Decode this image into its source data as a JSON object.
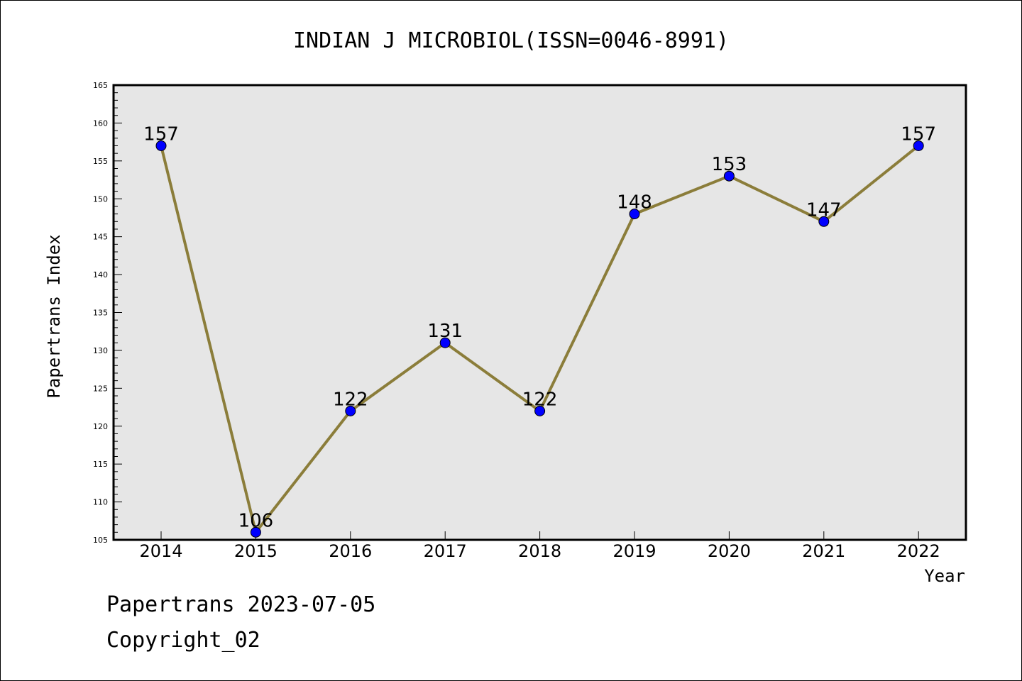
{
  "chart_data": {
    "type": "line",
    "title": "INDIAN J MICROBIOL(ISSN=0046-8991)",
    "xlabel": "Year",
    "ylabel": "Papertrans Index",
    "categories": [
      "2014",
      "2015",
      "2016",
      "2017",
      "2018",
      "2019",
      "2020",
      "2021",
      "2022"
    ],
    "values": [
      157,
      106,
      122,
      131,
      122,
      148,
      153,
      147,
      157
    ],
    "ylim": [
      105,
      165
    ],
    "yticks": [
      105,
      110,
      115,
      120,
      125,
      130,
      135,
      140,
      145,
      150,
      155,
      160,
      165
    ],
    "grid": false,
    "legend": "none",
    "colors": {
      "line": "#8B7D3A",
      "marker": "#0000FF",
      "plot_background": "#E6E6E6"
    }
  },
  "footer": {
    "date_line": "Papertrans 2023-07-05",
    "copyright_line": "Copyright_02"
  }
}
